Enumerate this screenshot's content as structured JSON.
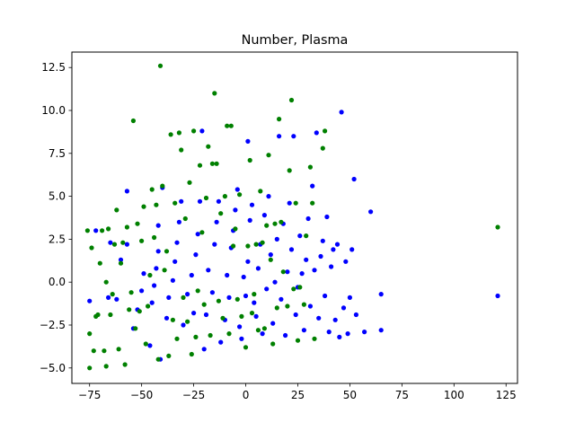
{
  "chart_data": {
    "type": "scatter",
    "title": "Number, Plasma",
    "xlabel": "",
    "ylabel": "",
    "xlim": [
      -83.5,
      130.5
    ],
    "ylim": [
      -5.9,
      13.4
    ],
    "xticks": [
      -75,
      -50,
      -25,
      0,
      25,
      50,
      75,
      100,
      125
    ],
    "xtick_labels": [
      "−75",
      "−50",
      "−25",
      "0",
      "25",
      "50",
      "75",
      "100",
      "125"
    ],
    "yticks": [
      -5.0,
      -2.5,
      0.0,
      2.5,
      5.0,
      7.5,
      10.0,
      12.5
    ],
    "ytick_labels": [
      "−5.0",
      "−2.5",
      "0.0",
      "2.5",
      "5.0",
      "7.5",
      "10.0",
      "12.5"
    ],
    "grid": false,
    "series": [
      {
        "color": "#0000ff",
        "points": [
          [
            -75,
            -1.1
          ],
          [
            -72,
            3.0
          ],
          [
            -66,
            -0.9
          ],
          [
            -65,
            2.3
          ],
          [
            -62,
            -1.0
          ],
          [
            -60,
            1.3
          ],
          [
            -57,
            2.2
          ],
          [
            -57,
            5.3
          ],
          [
            -54,
            -2.7
          ],
          [
            -52,
            -1.6
          ],
          [
            -50,
            -0.5
          ],
          [
            -49,
            0.5
          ],
          [
            -46,
            -3.7
          ],
          [
            -45,
            -1.2
          ],
          [
            -44,
            -0.2
          ],
          [
            -43,
            0.8
          ],
          [
            -42,
            1.8
          ],
          [
            -42,
            3.3
          ],
          [
            -41,
            -4.5
          ],
          [
            -40,
            5.5
          ],
          [
            -38,
            -2.1
          ],
          [
            -37,
            -0.9
          ],
          [
            -35,
            0.1
          ],
          [
            -34,
            1.2
          ],
          [
            -33,
            2.3
          ],
          [
            -32,
            3.5
          ],
          [
            -31,
            4.7
          ],
          [
            -30,
            -2.5
          ],
          [
            -28,
            -0.7
          ],
          [
            -26,
            0.4
          ],
          [
            -25,
            -1.8
          ],
          [
            -24,
            1.6
          ],
          [
            -23,
            2.8
          ],
          [
            -22,
            4.7
          ],
          [
            -21,
            8.8
          ],
          [
            -20,
            -3.9
          ],
          [
            -19,
            -1.9
          ],
          [
            -18,
            0.7
          ],
          [
            -16,
            -0.6
          ],
          [
            -15,
            2.2
          ],
          [
            -14,
            3.5
          ],
          [
            -13,
            4.7
          ],
          [
            -12,
            -3.5
          ],
          [
            -10,
            -2.2
          ],
          [
            -9,
            0.4
          ],
          [
            -8,
            -0.9
          ],
          [
            -7,
            2.0
          ],
          [
            -6,
            3.0
          ],
          [
            -5,
            4.2
          ],
          [
            -4,
            5.4
          ],
          [
            -3,
            -2.6
          ],
          [
            -2,
            -3.3
          ],
          [
            -1,
            0.3
          ],
          [
            0,
            -0.8
          ],
          [
            1,
            1.2
          ],
          [
            1,
            8.2
          ],
          [
            2,
            3.6
          ],
          [
            3,
            4.5
          ],
          [
            4,
            -1.2
          ],
          [
            5,
            -2.0
          ],
          [
            6,
            0.8
          ],
          [
            7,
            2.2
          ],
          [
            8,
            -3.0
          ],
          [
            9,
            3.9
          ],
          [
            10,
            -0.4
          ],
          [
            11,
            5.0
          ],
          [
            12,
            1.6
          ],
          [
            13,
            -2.4
          ],
          [
            14,
            0.0
          ],
          [
            15,
            2.5
          ],
          [
            16,
            8.5
          ],
          [
            17,
            -1.0
          ],
          [
            18,
            3.4
          ],
          [
            19,
            -3.1
          ],
          [
            20,
            0.6
          ],
          [
            21,
            4.6
          ],
          [
            22,
            1.9
          ],
          [
            23,
            8.5
          ],
          [
            24,
            -1.9
          ],
          [
            25,
            -0.3
          ],
          [
            26,
            2.7
          ],
          [
            27,
            0.5
          ],
          [
            28,
            -2.8
          ],
          [
            29,
            1.3
          ],
          [
            30,
            3.7
          ],
          [
            31,
            -1.4
          ],
          [
            32,
            5.6
          ],
          [
            33,
            0.7
          ],
          [
            34,
            8.7
          ],
          [
            35,
            -2.1
          ],
          [
            36,
            1.5
          ],
          [
            37,
            2.4
          ],
          [
            38,
            -0.8
          ],
          [
            39,
            3.8
          ],
          [
            40,
            -2.9
          ],
          [
            41,
            0.9
          ],
          [
            42,
            1.9
          ],
          [
            43,
            -2.2
          ],
          [
            44,
            2.2
          ],
          [
            45,
            -3.2
          ],
          [
            46,
            9.9
          ],
          [
            47,
            -1.5
          ],
          [
            48,
            1.2
          ],
          [
            49,
            -3.0
          ],
          [
            50,
            -0.9
          ],
          [
            51,
            1.9
          ],
          [
            52,
            6.0
          ],
          [
            53,
            -1.9
          ],
          [
            57,
            -2.9
          ],
          [
            60,
            4.1
          ],
          [
            65,
            -0.7
          ],
          [
            65,
            -2.8
          ],
          [
            121,
            -0.8
          ]
        ]
      },
      {
        "color": "#008000",
        "points": [
          [
            -76,
            3.0
          ],
          [
            -75,
            -3.0
          ],
          [
            -75,
            -5.0
          ],
          [
            -74,
            2.0
          ],
          [
            -73,
            -4.0
          ],
          [
            -72,
            -2.0
          ],
          [
            -71,
            -1.9
          ],
          [
            -70,
            1.1
          ],
          [
            -69,
            3.0
          ],
          [
            -68,
            -4.0
          ],
          [
            -67,
            -4.9
          ],
          [
            -67,
            0.0
          ],
          [
            -66,
            3.1
          ],
          [
            -65,
            -1.9
          ],
          [
            -64,
            -0.7
          ],
          [
            -63,
            2.2
          ],
          [
            -62,
            4.2
          ],
          [
            -61,
            -3.9
          ],
          [
            -60,
            1.1
          ],
          [
            -59,
            2.3
          ],
          [
            -58,
            -4.8
          ],
          [
            -57,
            3.2
          ],
          [
            -56,
            -1.6
          ],
          [
            -55,
            -0.6
          ],
          [
            -54,
            9.4
          ],
          [
            -53,
            -2.7
          ],
          [
            -52,
            3.4
          ],
          [
            -51,
            -1.7
          ],
          [
            -50,
            2.4
          ],
          [
            -49,
            4.4
          ],
          [
            -48,
            -3.6
          ],
          [
            -47,
            -1.4
          ],
          [
            -46,
            0.4
          ],
          [
            -45,
            5.4
          ],
          [
            -44,
            2.6
          ],
          [
            -43,
            4.5
          ],
          [
            -42,
            -4.5
          ],
          [
            -41,
            12.6
          ],
          [
            -40,
            5.6
          ],
          [
            -39,
            0.7
          ],
          [
            -38,
            1.8
          ],
          [
            -37,
            -4.3
          ],
          [
            -36,
            8.6
          ],
          [
            -35,
            -2.2
          ],
          [
            -34,
            4.6
          ],
          [
            -33,
            -3.3
          ],
          [
            -32,
            8.7
          ],
          [
            -31,
            7.7
          ],
          [
            -30,
            -0.9
          ],
          [
            -29,
            3.7
          ],
          [
            -28,
            -2.3
          ],
          [
            -27,
            5.8
          ],
          [
            -26,
            -4.2
          ],
          [
            -25,
            8.8
          ],
          [
            -24,
            -3.2
          ],
          [
            -23,
            -0.5
          ],
          [
            -22,
            6.8
          ],
          [
            -21,
            2.9
          ],
          [
            -20,
            -1.3
          ],
          [
            -19,
            4.9
          ],
          [
            -18,
            7.9
          ],
          [
            -17,
            -3.1
          ],
          [
            -16,
            6.9
          ],
          [
            -15,
            11.0
          ],
          [
            -14,
            6.9
          ],
          [
            -13,
            -1.1
          ],
          [
            -12,
            4.0
          ],
          [
            -11,
            -2.1
          ],
          [
            -10,
            5.0
          ],
          [
            -9,
            9.1
          ],
          [
            -8,
            -3.0
          ],
          [
            -7,
            9.1
          ],
          [
            -6,
            2.1
          ],
          [
            -5,
            3.1
          ],
          [
            -4,
            -1.0
          ],
          [
            -3,
            5.1
          ],
          [
            -2,
            -2.0
          ],
          [
            0,
            -3.8
          ],
          [
            1,
            2.1
          ],
          [
            2,
            7.1
          ],
          [
            3,
            -1.8
          ],
          [
            4,
            -0.7
          ],
          [
            5,
            2.2
          ],
          [
            6,
            -2.8
          ],
          [
            7,
            5.3
          ],
          [
            8,
            2.3
          ],
          [
            9,
            -2.7
          ],
          [
            10,
            3.3
          ],
          [
            11,
            7.4
          ],
          [
            12,
            1.3
          ],
          [
            13,
            -3.6
          ],
          [
            14,
            3.4
          ],
          [
            15,
            -1.5
          ],
          [
            16,
            9.5
          ],
          [
            17,
            3.5
          ],
          [
            18,
            0.6
          ],
          [
            20,
            -1.4
          ],
          [
            21,
            6.5
          ],
          [
            22,
            10.6
          ],
          [
            23,
            -0.4
          ],
          [
            24,
            4.6
          ],
          [
            25,
            -3.4
          ],
          [
            26,
            -0.3
          ],
          [
            28,
            -1.3
          ],
          [
            29,
            2.7
          ],
          [
            31,
            6.7
          ],
          [
            32,
            4.6
          ],
          [
            33,
            -3.3
          ],
          [
            37,
            7.8
          ],
          [
            38,
            8.8
          ],
          [
            121,
            3.2
          ]
        ]
      }
    ]
  }
}
